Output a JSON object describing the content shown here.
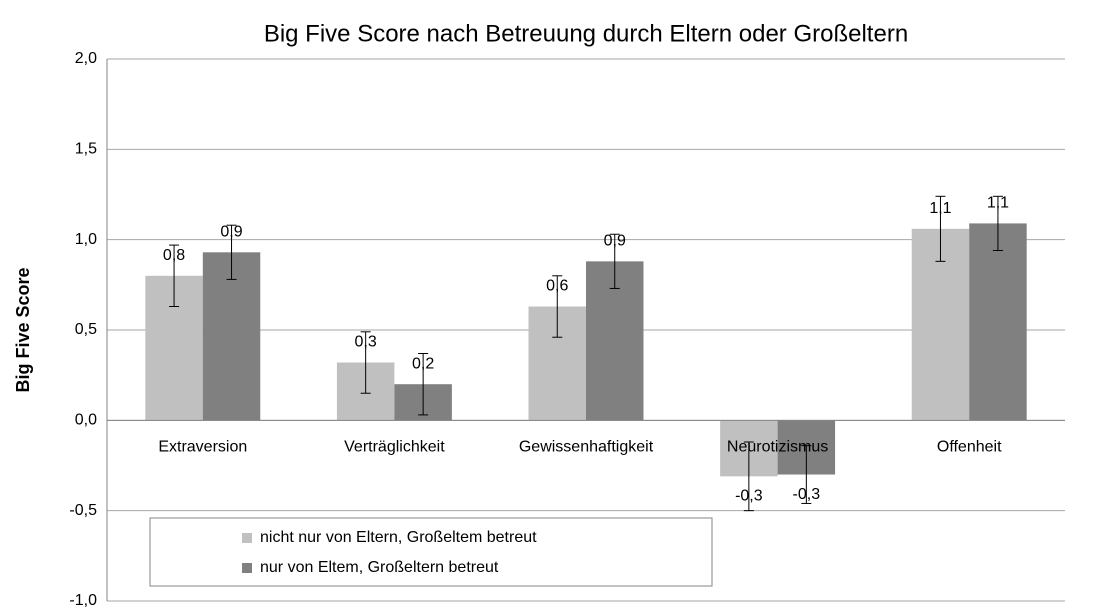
{
  "chart_data": {
    "type": "bar",
    "title": "Big Five Score nach Betreuung durch Eltern oder Großeltern",
    "y_label": "Big Five Score",
    "categories": [
      "Extraversion",
      "Verträglichkeit",
      "Gewissenhaftigkeit",
      "Neurotizismus",
      "Offenheit"
    ],
    "series": [
      {
        "name": "nicht nur von Eltern, Großeltem betreut",
        "color": "#c0c0c0",
        "values": [
          0.8,
          0.32,
          0.63,
          -0.31,
          1.06
        ],
        "value_labels": [
          "0,8",
          "0,3",
          "0,6",
          "-0,3",
          "1,1"
        ],
        "errors": [
          0.17,
          0.17,
          0.17,
          0.19,
          0.18
        ]
      },
      {
        "name": "nur von Eltem, Großeltern betreut",
        "color": "#808080",
        "values": [
          0.93,
          0.2,
          0.88,
          -0.3,
          1.09
        ],
        "value_labels": [
          "0,9",
          "0,2",
          "0,9",
          "-0,3",
          "1,1"
        ],
        "errors": [
          0.15,
          0.17,
          0.15,
          0.16,
          0.15
        ]
      }
    ],
    "ylim": [
      -1.0,
      2.0
    ],
    "yticks": [
      {
        "value": -1.0,
        "label": "-1,0"
      },
      {
        "value": -0.5,
        "label": "-0,5"
      },
      {
        "value": 0,
        "label": "0,0"
      },
      {
        "value": 0.5,
        "label": "0,5"
      },
      {
        "value": 1.0,
        "label": "1,0"
      },
      {
        "value": 1.5,
        "label": "1,5"
      },
      {
        "value": 2.0,
        "label": "2,0"
      }
    ],
    "grid": true,
    "legend": "lower left"
  }
}
